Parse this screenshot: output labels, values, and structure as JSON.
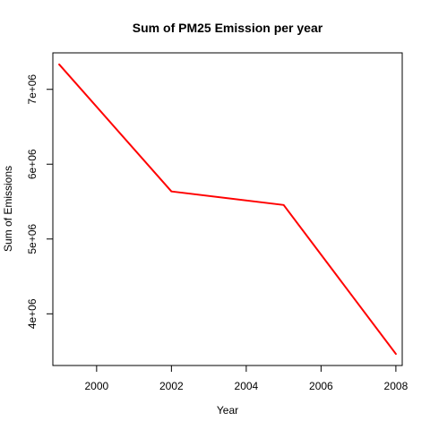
{
  "chart_data": {
    "type": "line",
    "title": "Sum of PM25 Emission per year",
    "xlabel": "Year",
    "ylabel": "Sum of Emissions",
    "x": [
      1999,
      2002,
      2005,
      2008
    ],
    "series": [
      {
        "values": [
          7332967,
          5635780,
          5454703,
          3464206
        ]
      }
    ],
    "xticks": [
      2000,
      2002,
      2004,
      2006,
      2008
    ],
    "xtick_labels": [
      "2000",
      "2002",
      "2004",
      "2006",
      "2008"
    ],
    "yticks": [
      4000000,
      5000000,
      6000000,
      7000000
    ],
    "ytick_labels": [
      "4e+06",
      "5e+06",
      "6e+06",
      "7e+06"
    ],
    "xlim": [
      1998.83,
      2008.17
    ],
    "ylim": [
      3309376,
      7487797
    ],
    "grid": false,
    "line_color": "#ff0000"
  }
}
